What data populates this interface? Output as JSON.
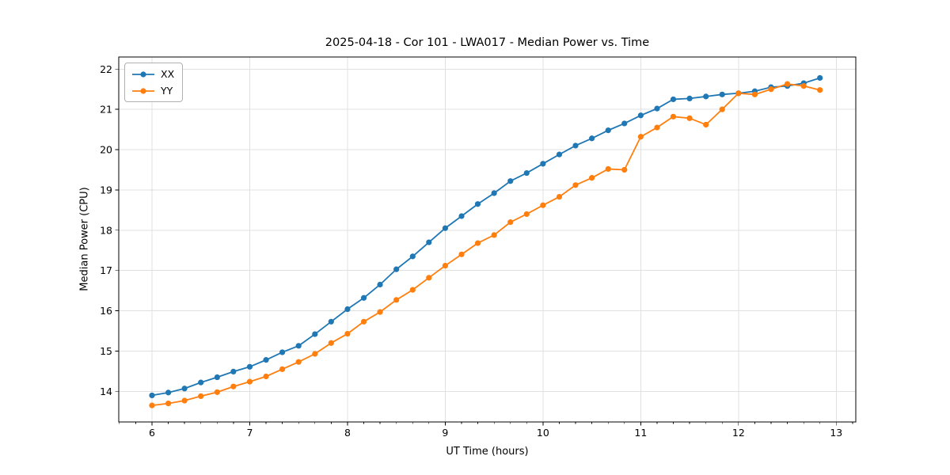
{
  "figure": {
    "kind": "matplotlib-style line chart"
  },
  "chart_data": {
    "type": "line",
    "title": "2025-04-18 - Cor 101 - LWA017 - Median Power vs. Time",
    "xlabel": "UT Time (hours)",
    "ylabel": "Median Power (CPU)",
    "xlim": [
      5.66,
      13.2
    ],
    "ylim": [
      13.24,
      22.3
    ],
    "x_major_ticks": [
      6,
      7,
      8,
      9,
      10,
      11,
      12,
      13
    ],
    "x_minor_step": 0.16667,
    "y_major_ticks": [
      14,
      15,
      16,
      17,
      18,
      19,
      20,
      21,
      22
    ],
    "grid": true,
    "grid_color": "#e0e0e0",
    "legend_position": "upper-left",
    "marker": "circle",
    "x": [
      6.0,
      6.167,
      6.333,
      6.5,
      6.667,
      6.833,
      7.0,
      7.167,
      7.333,
      7.5,
      7.667,
      7.833,
      8.0,
      8.167,
      8.333,
      8.5,
      8.667,
      8.833,
      9.0,
      9.167,
      9.333,
      9.5,
      9.667,
      9.833,
      10.0,
      10.167,
      10.333,
      10.5,
      10.667,
      10.833,
      11.0,
      11.167,
      11.333,
      11.5,
      11.667,
      11.833,
      12.0,
      12.167,
      12.333,
      12.5,
      12.667,
      12.833
    ],
    "series": [
      {
        "name": "XX",
        "color": "#1f77b4",
        "values": [
          13.9,
          13.97,
          14.07,
          14.22,
          14.35,
          14.49,
          14.61,
          14.78,
          14.97,
          15.13,
          15.42,
          15.73,
          16.04,
          16.32,
          16.65,
          17.03,
          17.35,
          17.7,
          18.05,
          18.35,
          18.65,
          18.92,
          19.22,
          19.42,
          19.65,
          19.88,
          20.1,
          20.28,
          20.48,
          20.65,
          20.85,
          21.02,
          21.25,
          21.27,
          21.32,
          21.37,
          21.4,
          21.45,
          21.55,
          21.58,
          21.65,
          21.78
        ]
      },
      {
        "name": "YY",
        "color": "#ff7f0e",
        "values": [
          13.65,
          13.7,
          13.77,
          13.88,
          13.98,
          14.12,
          14.24,
          14.37,
          14.55,
          14.73,
          14.93,
          15.2,
          15.43,
          15.73,
          15.97,
          16.27,
          16.52,
          16.82,
          17.12,
          17.4,
          17.68,
          17.88,
          18.2,
          18.4,
          18.62,
          18.83,
          19.12,
          19.3,
          19.52,
          19.5,
          20.32,
          20.55,
          20.82,
          20.78,
          20.62,
          21.0,
          21.4,
          21.37,
          21.5,
          21.63,
          21.58,
          21.48
        ]
      }
    ]
  }
}
